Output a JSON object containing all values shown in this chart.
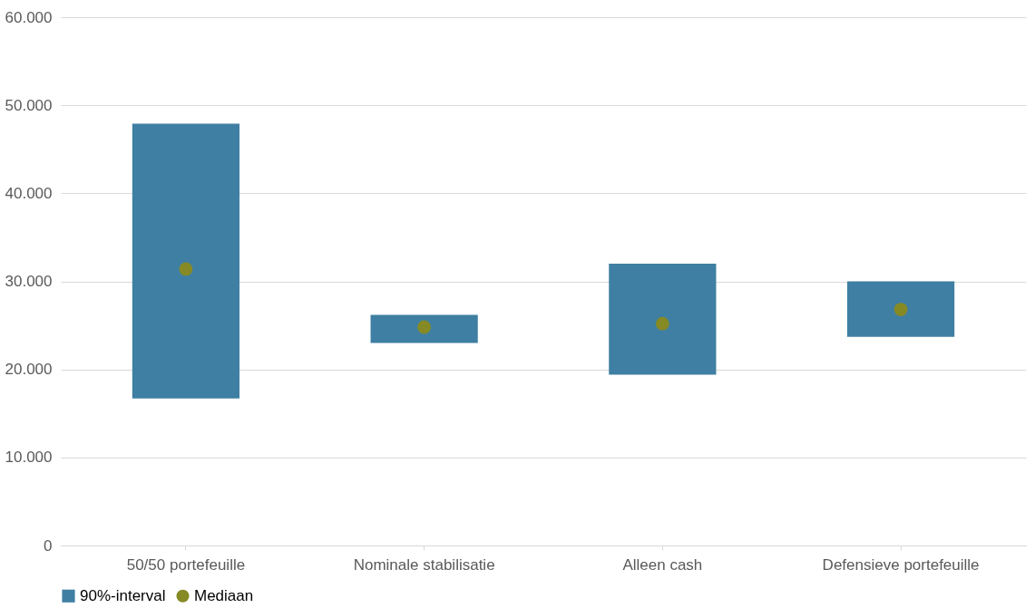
{
  "chart_data": {
    "type": "bar",
    "categories": [
      "50/50 portefeuille",
      "Nominale stabilisatie",
      "Alleen cash",
      "Defensieve portefeuille"
    ],
    "series": [
      {
        "name": "90%-interval",
        "color": "#3f7fa3",
        "base": [
          16700,
          23000,
          19400,
          23700
        ],
        "values": [
          31200,
          3200,
          12600,
          6300
        ]
      },
      {
        "name": "Mediaan",
        "type": "scatter",
        "color": "#868a25",
        "marker": "circle",
        "x": [
          "50/50 portefeuille",
          "Nominale stabilisatie",
          "Alleen cash",
          "Defensieve portefeuille"
        ],
        "values": [
          31400,
          24800,
          25200,
          26800
        ]
      }
    ],
    "ylim": [
      0,
      60000
    ],
    "yticks": [
      {
        "value": 0,
        "label": "0"
      },
      {
        "value": 10000,
        "label": "10.000"
      },
      {
        "value": 20000,
        "label": "20.000"
      },
      {
        "value": 30000,
        "label": "30.000"
      },
      {
        "value": 40000,
        "label": "40.000"
      },
      {
        "value": 50000,
        "label": "50.000"
      },
      {
        "value": 60000,
        "label": "60.000"
      }
    ],
    "grid": "y",
    "legend": "bottom"
  }
}
